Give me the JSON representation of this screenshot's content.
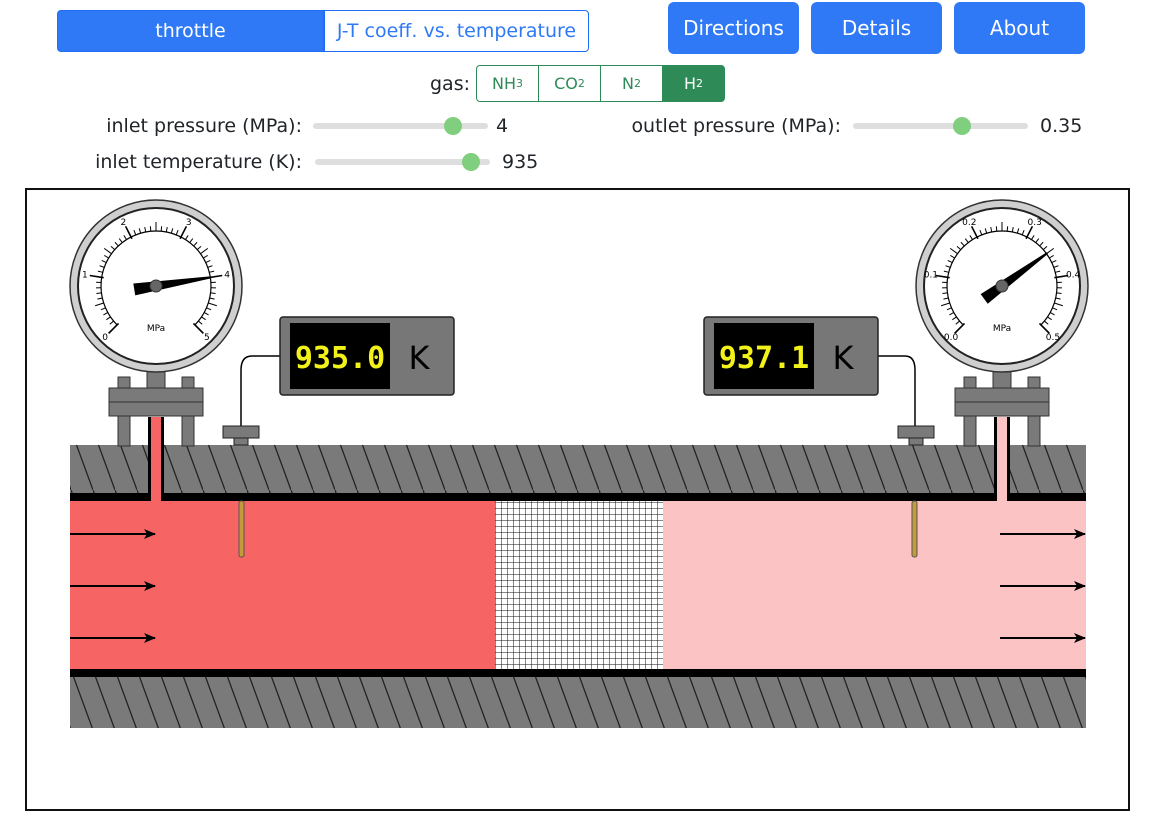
{
  "tabs": {
    "active": "throttle",
    "inactive": "J-T coeff. vs. temperature"
  },
  "buttons": {
    "directions": "Directions",
    "details": "Details",
    "about": "About"
  },
  "gas": {
    "label": "gas:",
    "options": [
      {
        "base": "NH",
        "sub": "3"
      },
      {
        "base": "CO",
        "sub": "2"
      },
      {
        "base": "N",
        "sub": "2"
      },
      {
        "base": "H",
        "sub": "2"
      }
    ],
    "selected_index": 3
  },
  "sliders": {
    "inlet_pressure": {
      "label": "inlet pressure (MPa):",
      "value": "4",
      "fraction": 0.8
    },
    "outlet_pressure": {
      "label": "outlet pressure (MPa):",
      "value": "0.35",
      "fraction": 0.62
    },
    "inlet_temperature": {
      "label": "inlet temperature (K):",
      "value": "935",
      "fraction": 0.89
    }
  },
  "gauges": {
    "inlet": {
      "unit": "MPa",
      "ticks": [
        "0",
        "1",
        "2",
        "3",
        "4",
        "5"
      ],
      "min": 0,
      "max": 5,
      "reading": 4
    },
    "outlet": {
      "unit": "MPa",
      "ticks": [
        "0.0",
        "0.1",
        "0.2",
        "0.3",
        "0.4",
        "0.5"
      ],
      "min": 0,
      "max": 0.5,
      "reading": 0.35
    }
  },
  "displays": {
    "inlet": {
      "value": "935.0",
      "unit": "K"
    },
    "outlet": {
      "value": "937.1",
      "unit": "K"
    }
  },
  "colors": {
    "primary": "#2f79f6",
    "gas_selected": "#2e8a57",
    "inlet_gas": "#f76464",
    "outlet_gas": "#fbc3c3",
    "lcd_digits": "#f2f21a"
  }
}
